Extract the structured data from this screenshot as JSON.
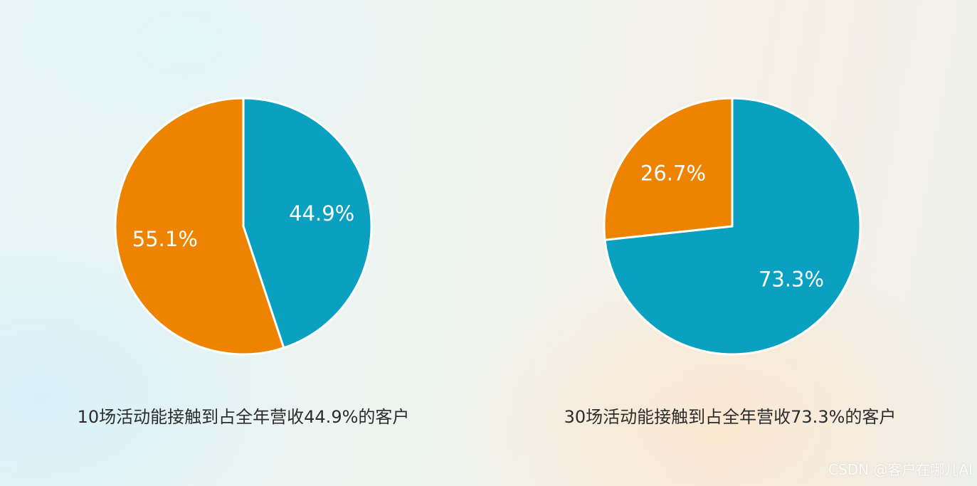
{
  "chart_data": [
    {
      "type": "pie",
      "caption": "10场活动能接触到占全年营收44.9%的客户",
      "slices": [
        {
          "value": 44.9,
          "label": "44.9%",
          "color": "#0aa1c1"
        },
        {
          "value": 55.1,
          "label": "55.1%",
          "color": "#ee8300"
        }
      ]
    },
    {
      "type": "pie",
      "caption": "30场活动能接触到占全年营收73.3%的客户",
      "slices": [
        {
          "value": 73.3,
          "label": "73.3%",
          "color": "#0aa1c1"
        },
        {
          "value": 26.7,
          "label": "26.7%",
          "color": "#ee8300"
        }
      ]
    }
  ],
  "watermark": "CSDN @客户在哪儿AI"
}
